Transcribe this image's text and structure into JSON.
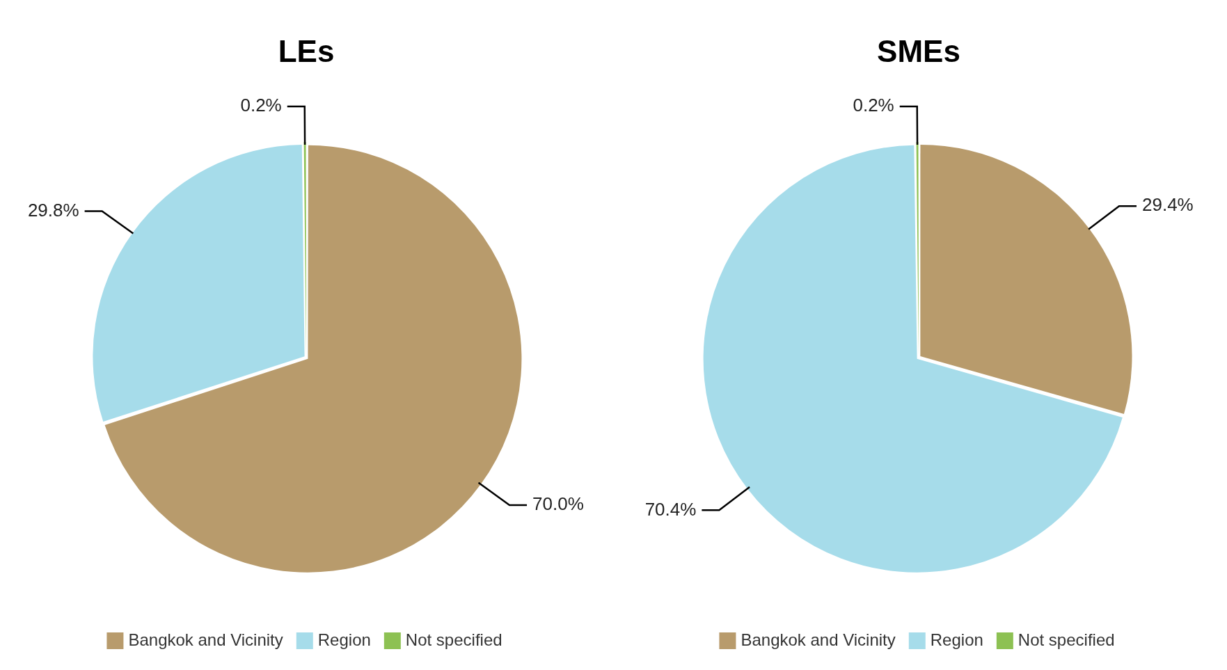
{
  "chart_data": [
    {
      "type": "pie",
      "title": "LEs",
      "categories": [
        "Bangkok and Vicinity",
        "Region",
        "Not specified"
      ],
      "values": [
        70.0,
        29.8,
        0.2
      ],
      "colors": [
        "#b89b6c",
        "#a6dcea",
        "#8dc153"
      ],
      "value_labels": [
        "70.0%",
        "29.8%",
        "0.2%"
      ],
      "legend": "bottom"
    },
    {
      "type": "pie",
      "title": "SMEs",
      "categories": [
        "Bangkok and Vicinity",
        "Region",
        "Not specified"
      ],
      "values": [
        29.4,
        70.4,
        0.2
      ],
      "colors": [
        "#b89b6c",
        "#a6dcea",
        "#8dc153"
      ],
      "value_labels": [
        "29.4%",
        "70.4%",
        "0.2%"
      ],
      "legend": "bottom"
    }
  ]
}
